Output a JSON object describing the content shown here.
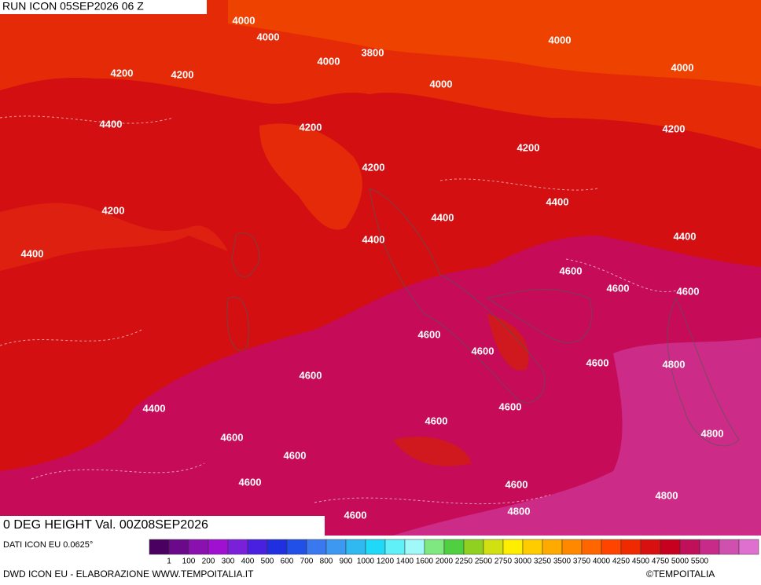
{
  "header": {
    "run": "RUN ICON 05SEP2026 06 Z"
  },
  "map": {
    "title": "0 DEG HEIGHT Val. 00Z08SEP2026",
    "contour_labels": [
      4000,
      4000,
      4000,
      3800,
      4000,
      4000,
      4200,
      4200,
      4000,
      4400,
      4200,
      4200,
      4200,
      4200,
      4200,
      4400,
      4400,
      4400,
      4400,
      4400,
      4600,
      4600,
      4600,
      4600,
      4600,
      4600,
      4800,
      4600,
      4400,
      4600,
      4600,
      4800,
      4600,
      4600,
      4600,
      4600,
      4800,
      4800,
      4600
    ]
  },
  "footer": {
    "source": "DATI ICON EU 0.0625°",
    "credit": "DWD ICON EU - ELABORAZIONE WWW.TEMPOITALIA.IT",
    "copyright": "©TEMPOITALIA"
  },
  "legend": {
    "colors": [
      "#4a0060",
      "#6a0a8a",
      "#8a10b0",
      "#a010d0",
      "#7a20d8",
      "#4a20e0",
      "#2030e0",
      "#2050e8",
      "#3a78f0",
      "#3c98f0",
      "#30b8f0",
      "#20d8f8",
      "#60f0f8",
      "#a0f8f8",
      "#80e880",
      "#50d040",
      "#90d020",
      "#d0e010",
      "#ffee00",
      "#ffcc00",
      "#ffaa00",
      "#ff8800",
      "#ff6600",
      "#ff4400",
      "#f02a00",
      "#d81010",
      "#c80020",
      "#c0105a",
      "#c82a8a",
      "#d050b0",
      "#e070d0"
    ],
    "labels": [
      "1",
      "100",
      "200",
      "300",
      "400",
      "500",
      "600",
      "700",
      "800",
      "900",
      "1000",
      "1200",
      "1400",
      "1600",
      "2000",
      "2250",
      "2500",
      "2750",
      "3000",
      "3250",
      "3500",
      "3750",
      "4000",
      "4250",
      "4500",
      "4750",
      "5000",
      "5500"
    ]
  }
}
